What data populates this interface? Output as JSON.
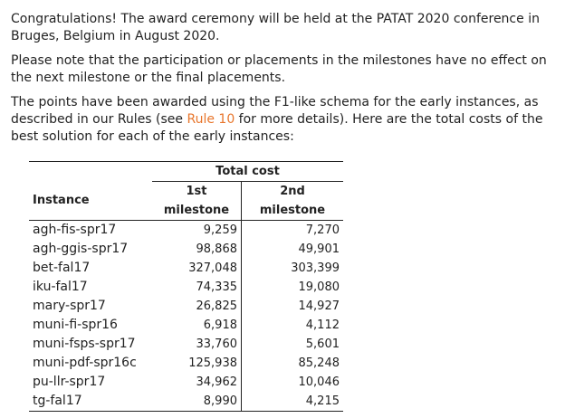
{
  "paragraphs": {
    "congrats": "Congratulations! The award ceremony will be held at the PATAT 2020 conference in Bruges, Belgium in August 2020.",
    "note": "Please note that the participation or placements in the milestones have no effect on the next milestone or the final placements.",
    "points_before_link": "The points have been awarded using the F1-like schema for the early instances, as described in our Rules (see ",
    "points_link": "Rule 10",
    "points_after_link": " for more details). Here are the total costs of the best solution for each of the early instances:"
  },
  "colors": {
    "link": "#e8762c",
    "text": "#222222"
  },
  "table": {
    "group_header": "Total cost",
    "columns": [
      "Instance",
      "1st milestone",
      "2nd milestone"
    ],
    "rows": [
      {
        "instance": "agh-fis-spr17",
        "m1": "9,259",
        "m2": "7,270"
      },
      {
        "instance": "agh-ggis-spr17",
        "m1": "98,868",
        "m2": "49,901"
      },
      {
        "instance": "bet-fal17",
        "m1": "327,048",
        "m2": "303,399"
      },
      {
        "instance": "iku-fal17",
        "m1": "74,335",
        "m2": "19,080"
      },
      {
        "instance": "mary-spr17",
        "m1": "26,825",
        "m2": "14,927"
      },
      {
        "instance": "muni-fi-spr16",
        "m1": "6,918",
        "m2": "4,112"
      },
      {
        "instance": "muni-fsps-spr17",
        "m1": "33,760",
        "m2": "5,601"
      },
      {
        "instance": "muni-pdf-spr16c",
        "m1": "125,938",
        "m2": "85,248"
      },
      {
        "instance": "pu-llr-spr17",
        "m1": "34,962",
        "m2": "10,046"
      },
      {
        "instance": "tg-fal17",
        "m1": "8,990",
        "m2": "4,215"
      }
    ]
  }
}
